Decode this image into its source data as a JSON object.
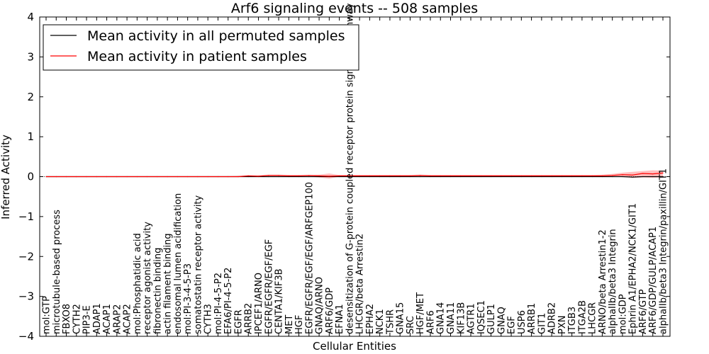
{
  "chart_data": {
    "type": "line",
    "title": "Arf6 signaling events -- 508 samples",
    "xlabel": "Cellular Entities",
    "ylabel": "Inferred Activity",
    "ylim": [
      -4,
      4
    ],
    "yticks": [
      4,
      3,
      2,
      1,
      0,
      -1,
      -2,
      -3,
      -4
    ],
    "ytick_labels": [
      "4",
      "3",
      "2",
      "1",
      "0",
      "−1",
      "−2",
      "−3",
      "−4"
    ],
    "legend_position": "top-left",
    "categories": [
      "mol:GTP",
      "microtubule-based process",
      "FBXO8",
      "CYTH2",
      "PIP3-E",
      "ADAP1",
      "ACAP1",
      "ARAP2",
      "ACAP2",
      "mol:Phosphatidic acid",
      "receptor agonist activity",
      "fibronectin binding",
      "actin filament binding",
      "endosomal lumen acidification",
      "mol:PI-3-4-5-P3",
      "somatostatin receptor activity",
      "CYTH3",
      "mol:PI-4-5-P2",
      "EFA6/PI-4-5-P2",
      "EGFR",
      "ARRB2",
      "IPCEF1/ARNO",
      "EGFR/EGFR/EGF/EGF",
      "CENTA1/KIF3B",
      "MET",
      "HGF",
      "EGFR/EGFR/EGF/EGF/ARFGEP100",
      "GNAQ/ARNO",
      "ARF6/GDP",
      "EFNA1",
      "desensitization of G-protein coupled receptor protein signaling pathway",
      "LHCGR/beta Arrestin2",
      "EPHA2",
      "NCK1",
      "TSHR",
      "GNA15",
      "SRC",
      "HGF/MET",
      "ARF6",
      "GNA14",
      "GNA11",
      "KIF13B",
      "AGTR1",
      "IQSEC1",
      "GULP1",
      "GNAQ",
      "EGF",
      "USP6",
      "ARRB1",
      "GIT1",
      "ADRB2",
      "PXN",
      "ITGB3",
      "ITGA2B",
      "LHCGR",
      "ARNO/beta Arrestin1-2",
      "alphaIIb/beta3 Integrin",
      "mol:GDP",
      "Ephrin A1/EPHA2/NCK1/GIT1",
      "ARF6/GTP",
      "ARF6/GDP/GULP/ACAP1",
      "alphaIIb/beta3 Integrin/paxillin/GIT1"
    ],
    "series": [
      {
        "name": "Mean activity in all permuted samples",
        "color": "#000000",
        "values": [
          0,
          0,
          0,
          0,
          0,
          0,
          0,
          0,
          0,
          0,
          0,
          0,
          0,
          0,
          0,
          0,
          0,
          0,
          0,
          0,
          0,
          0,
          0,
          0,
          0,
          0,
          0,
          0,
          0,
          0,
          0,
          0,
          0,
          0,
          0,
          0,
          0,
          0,
          0,
          0,
          0,
          0,
          0,
          0,
          0,
          0,
          0,
          0,
          0,
          0,
          0,
          0,
          0,
          0,
          0,
          0,
          0,
          0,
          -0.01,
          0,
          0,
          0
        ]
      },
      {
        "name": "Mean activity in patient samples",
        "color": "#ff0000",
        "values": [
          0,
          0,
          0,
          0,
          0,
          0,
          0,
          0,
          0,
          0,
          0,
          0,
          0,
          0,
          0,
          0,
          0,
          0,
          0,
          0,
          0.02,
          0.01,
          0.03,
          0.03,
          0.02,
          0.02,
          0.03,
          0.02,
          0.01,
          0.02,
          0.02,
          0.02,
          0.02,
          0.02,
          0.02,
          0.02,
          0.02,
          0.03,
          0.02,
          0.02,
          0.02,
          0.02,
          0.02,
          0.02,
          0.02,
          0.02,
          0.02,
          0.02,
          0.02,
          0.02,
          0.02,
          0.02,
          0.02,
          0.02,
          0.02,
          0.02,
          0.03,
          0.05,
          0.04,
          0.08,
          0.07,
          0.09
        ],
        "band_low": [
          0,
          0,
          0,
          0,
          0,
          0,
          0,
          0,
          0,
          0,
          0,
          0,
          0,
          0,
          0,
          0,
          0,
          0,
          0,
          0,
          0,
          0,
          0,
          0,
          0,
          0,
          0,
          -0.02,
          -0.05,
          0,
          0,
          0,
          0,
          0,
          0,
          0,
          0,
          0,
          0,
          0,
          0,
          0,
          0,
          0,
          0,
          0,
          0,
          0,
          0,
          0,
          0,
          0,
          0,
          0,
          0,
          0,
          0,
          -0.01,
          -0.03,
          -0.02,
          -0.03,
          -0.02
        ],
        "band_high": [
          0.01,
          0.01,
          0.01,
          0.01,
          0.01,
          0.01,
          0.01,
          0.01,
          0.01,
          0.01,
          0.01,
          0.01,
          0.01,
          0.01,
          0.01,
          0.01,
          0.01,
          0.01,
          0.01,
          0.02,
          0.03,
          0.03,
          0.05,
          0.05,
          0.04,
          0.04,
          0.04,
          0.05,
          0.08,
          0.04,
          0.04,
          0.04,
          0.04,
          0.04,
          0.04,
          0.04,
          0.04,
          0.05,
          0.04,
          0.04,
          0.04,
          0.04,
          0.04,
          0.04,
          0.04,
          0.04,
          0.04,
          0.04,
          0.04,
          0.04,
          0.04,
          0.04,
          0.04,
          0.04,
          0.04,
          0.05,
          0.07,
          0.1,
          0.12,
          0.14,
          0.16,
          0.15
        ]
      }
    ]
  }
}
